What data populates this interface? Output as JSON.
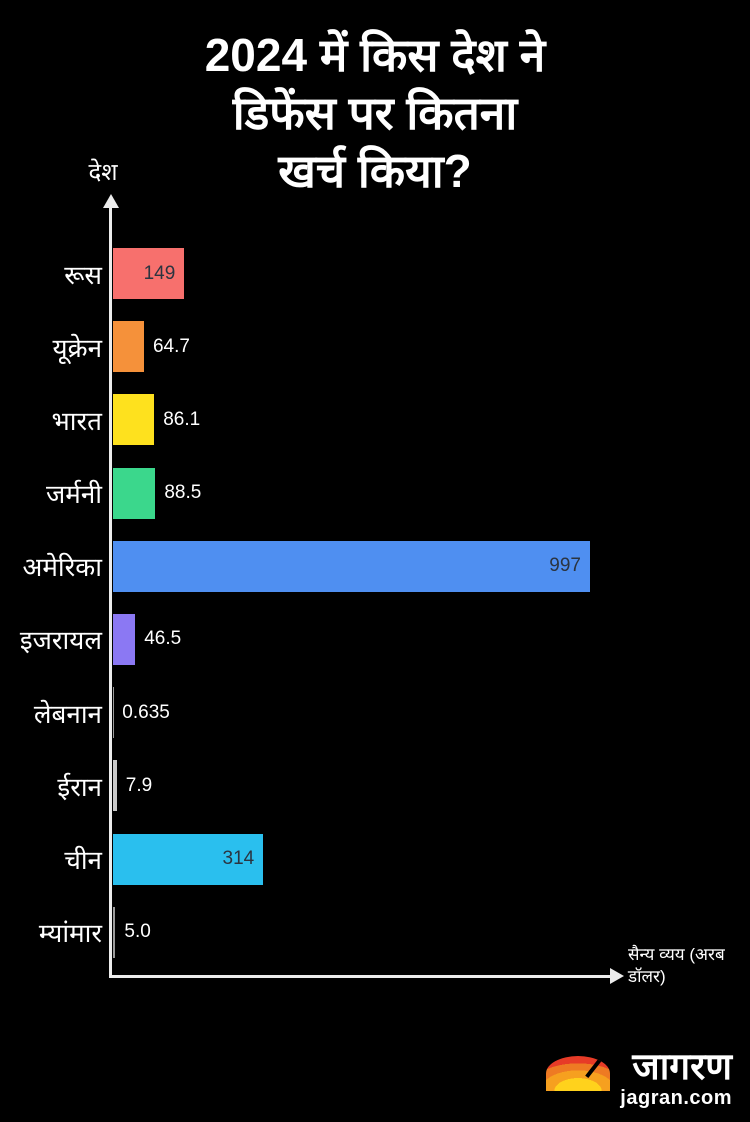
{
  "title": {
    "line1": "2024 में किस देश ने",
    "line2": "डिफेंस पर कितना",
    "line3": "खर्च किया?"
  },
  "chart_data": {
    "type": "bar",
    "orientation": "horizontal",
    "title": "2024 में किस देश ने डिफेंस पर कितना खर्च किया?",
    "xlabel": "सैन्य व्यय (अरब डॉलर)",
    "ylabel": "देश",
    "xlim": [
      0,
      1040
    ],
    "grid": false,
    "categories": [
      "रूस",
      "यूक्रेन",
      "भारत",
      "जर्मनी",
      "अमेरिका",
      "इजरायल",
      "लेबनान",
      "ईरान",
      "चीन",
      "म्यांमार"
    ],
    "values": [
      149,
      64.7,
      86.1,
      88.5,
      997,
      46.5,
      0.635,
      7.9,
      314,
      5.0
    ],
    "value_labels": [
      "149",
      "64.7",
      "86.1",
      "88.5",
      "997",
      "46.5",
      "0.635",
      "7.9",
      "314",
      "5.0"
    ],
    "bar_colors": [
      "#f7706d",
      "#f5913a",
      "#fee11e",
      "#3bd78c",
      "#4f8ff1",
      "#8b78f3",
      "#9b9b9b",
      "#c9c9c9",
      "#2abfee",
      "#9b9b9b"
    ],
    "inside_value_color": "#2b3440"
  },
  "axis": {
    "y_title": "देश",
    "x_title_line1": "सैन्य व्यय (अरब",
    "x_title_line2": "डॉलर)"
  },
  "footer": {
    "brand": "जागरण",
    "site": "jagran.com",
    "logo_icon": "sunrise-icon",
    "logo_colors": {
      "outer": "#e73b27",
      "mid": "#ee7a23",
      "inner": "#f6a01f",
      "core": "#ffd21c"
    }
  }
}
